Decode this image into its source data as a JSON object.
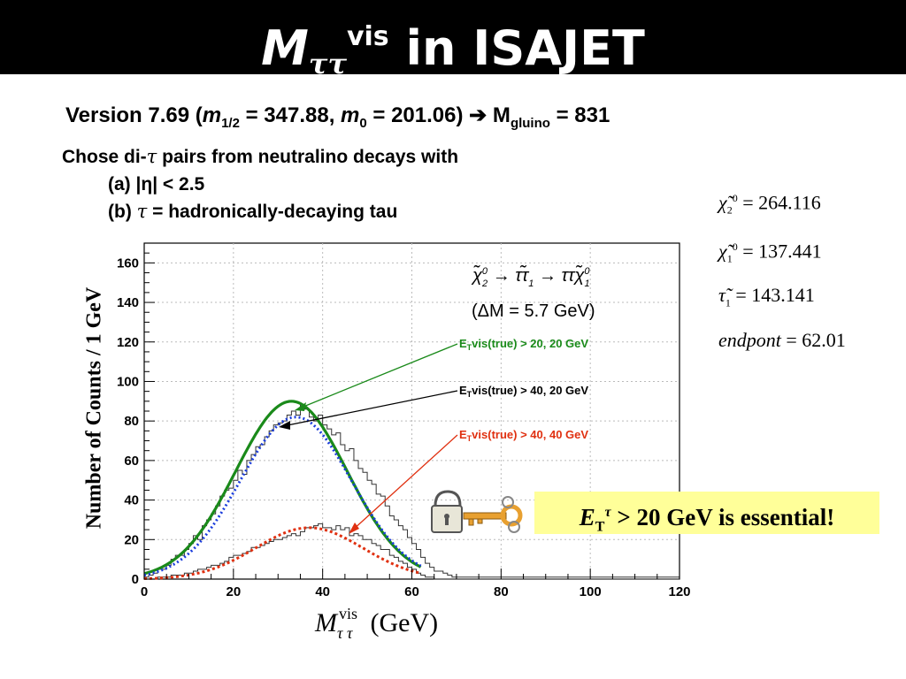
{
  "slide": {
    "title_main": "M",
    "title_tau": "ττ",
    "title_sup": "vis",
    "title_rest": "in ISAJET",
    "version_prefix": "Version 7.69 (",
    "m_half_sym": "m",
    "m_half_sub": "1/2",
    "m_half_val": " = 347.88, ",
    "m0_sym": "m",
    "m0_sub": "0",
    "m0_val": " = 201.06) ",
    "arrow": "➔",
    "mgluino_sym": " M",
    "mgluino_sub": "gluino",
    "mgluino_val": " = 831",
    "chose_line": " pairs from neutralino decays with",
    "chose_prefix": "Chose di-",
    "tau": "τ",
    "cond_a": "(a) |η| < 2.5",
    "cond_b_prefix": "(b) ",
    "cond_b_rest": " = hadronically-decaying tau",
    "eq1": "= 264.116",
    "eq2": "= 137.441",
    "eq3": "= 143.141",
    "eq4_lhs": "endpont",
    "eq4": "= 62.01",
    "essential_rest": " > 20 GeV is essential!"
  },
  "chart_data": {
    "type": "histogram",
    "ylabel": "Number of Counts / 1 GeV",
    "xlabel": "M_ττ^vis (GeV)",
    "xlim": [
      0,
      120
    ],
    "ylim": [
      0,
      170
    ],
    "xticks": [
      "0",
      "20",
      "40",
      "60",
      "80",
      "100",
      "120"
    ],
    "yticks": [
      "0",
      "20",
      "40",
      "60",
      "80",
      "100",
      "120",
      "140",
      "160"
    ],
    "process": "χ̃2⁰ → τ τ̃1 → τ τ χ̃1⁰",
    "delta_m": "(ΔM = 5.7 GeV)",
    "series": [
      {
        "name": "ETvis(true) > 20, 20 GeV",
        "color": "#1a8a1a",
        "fit": {
          "type": "gaussian",
          "amplitude": 90,
          "mean": 33,
          "sigma": 12.5,
          "range": [
            0,
            62
          ]
        }
      },
      {
        "name": "ETvis(true) > 40, 20 GeV",
        "color": "#000000",
        "fit": {
          "type": "gaussian",
          "amplitude": 82,
          "mean": 34,
          "sigma": 12.5,
          "range": [
            0,
            62
          ]
        }
      },
      {
        "name": "ETvis(true) > 40, 40 GeV",
        "color": "#e03010",
        "fit": {
          "type": "gaussian",
          "amplitude": 26,
          "mean": 37,
          "sigma": 12,
          "range": [
            0,
            62
          ]
        }
      }
    ],
    "hist_20_20": [
      1,
      2,
      3,
      5,
      5,
      7,
      10,
      12,
      12,
      15,
      18,
      22,
      20,
      27,
      30,
      33,
      37,
      42,
      45,
      46,
      50,
      55,
      53,
      60,
      63,
      67,
      68,
      72,
      75,
      78,
      79,
      80,
      83,
      85,
      83,
      88,
      86,
      82,
      80,
      83,
      78,
      76,
      73,
      74,
      68,
      65,
      66,
      60,
      56,
      54,
      50,
      48,
      43,
      42,
      37,
      32,
      30,
      27,
      25,
      21,
      18,
      15,
      11,
      8,
      6,
      4,
      4,
      3,
      2,
      1,
      1,
      1,
      1,
      1,
      1,
      1,
      1,
      1,
      1,
      1,
      1,
      1,
      1,
      1,
      1,
      1,
      1,
      1,
      1,
      1,
      1,
      1,
      1,
      1,
      1,
      1,
      1,
      1,
      1,
      1,
      1,
      1,
      1,
      1,
      1,
      1,
      1,
      1,
      1,
      1,
      1,
      1,
      1,
      1,
      1,
      1,
      1,
      1,
      1,
      1
    ],
    "hist_40_40": [
      0,
      0,
      0,
      1,
      1,
      1,
      2,
      2,
      2,
      3,
      3,
      4,
      5,
      5,
      6,
      7,
      7,
      8,
      9,
      11,
      12,
      12,
      13,
      14,
      16,
      16,
      17,
      18,
      19,
      20,
      20,
      21,
      22,
      23,
      22,
      24,
      26,
      26,
      27,
      28,
      26,
      26,
      25,
      27,
      25,
      26,
      22,
      23,
      22,
      20,
      20,
      18,
      17,
      15,
      15,
      12,
      11,
      9,
      8,
      6,
      5,
      3,
      2,
      1,
      1,
      0,
      0,
      0,
      0,
      0,
      0,
      0,
      0,
      0,
      0,
      0,
      0,
      0,
      0,
      0,
      0,
      0,
      0,
      0,
      0,
      0,
      0,
      0,
      0,
      0,
      0,
      0,
      0,
      0,
      0,
      0,
      0,
      0,
      0,
      0,
      0,
      0,
      0,
      0,
      0,
      0,
      0,
      0,
      0,
      0,
      0,
      0,
      0,
      0,
      0,
      0,
      0,
      0,
      0,
      0
    ]
  }
}
